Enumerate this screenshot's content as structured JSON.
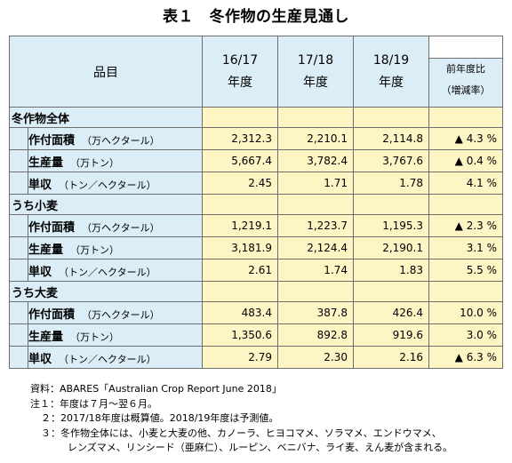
{
  "title": "表１　冬作物の生産見通し",
  "table": {
    "header": {
      "item": "品目",
      "years": [
        {
          "top": "16/17",
          "bottom": "年度"
        },
        {
          "top": "17/18",
          "bottom": "年度"
        },
        {
          "top": "18/19",
          "bottom": "年度"
        }
      ],
      "change_top": "前年度比",
      "change_bottom": "（増減率）"
    },
    "groups": [
      {
        "name": "冬作物全体",
        "rows": [
          {
            "label": "作付面積",
            "unit": "（万ヘクタール）",
            "v1": "2,312.3",
            "v2": "2,210.1",
            "v3": "2,114.8",
            "change": "▲ 4.3 %"
          },
          {
            "label": "生産量",
            "unit": "（万トン）",
            "v1": "5,667.4",
            "v2": "3,782.4",
            "v3": "3,767.6",
            "change": "▲ 0.4 %"
          },
          {
            "label": "単収",
            "unit": "（トン／ヘクタール）",
            "v1": "2.45",
            "v2": "1.71",
            "v3": "1.78",
            "change": "4.1 %"
          }
        ]
      },
      {
        "name": "うち小麦",
        "rows": [
          {
            "label": "作付面積",
            "unit": "（万ヘクタール）",
            "v1": "1,219.1",
            "v2": "1,223.7",
            "v3": "1,195.3",
            "change": "▲ 2.3 %"
          },
          {
            "label": "生産量",
            "unit": "（万トン）",
            "v1": "3,181.9",
            "v2": "2,124.4",
            "v3": "2,190.1",
            "change": "3.1 %"
          },
          {
            "label": "単収",
            "unit": "（トン／ヘクタール）",
            "v1": "2.61",
            "v2": "1.74",
            "v3": "1.83",
            "change": "5.5 %"
          }
        ]
      },
      {
        "name": "うち大麦",
        "rows": [
          {
            "label": "作付面積",
            "unit": "（万ヘクタール）",
            "v1": "483.4",
            "v2": "387.8",
            "v3": "426.4",
            "change": "10.0 %"
          },
          {
            "label": "生産量",
            "unit": "（万トン）",
            "v1": "1,350.6",
            "v2": "892.8",
            "v3": "919.6",
            "change": "3.0 %"
          },
          {
            "label": "単収",
            "unit": "（トン／ヘクタール）",
            "v1": "2.79",
            "v2": "2.30",
            "v3": "2.16",
            "change": "▲ 6.3 %"
          }
        ]
      }
    ]
  },
  "notes": {
    "source": "資料：ABARES「Australian Crop Report June 2018」",
    "note1": "注１：年度は７月～翌６月。",
    "note2": "２：2017/18年度は概算値。2018/19年度は予測値。",
    "note3a": "３：冬作物全体には、小麦と大麦の他、カノーラ、ヒヨコマメ、ソラマメ、エンドウマメ、",
    "note3b": "レンズマメ、リンシード（亜麻仁）、ルーピン、ベニバナ、ライ麦、えん麦が含まれる。"
  },
  "colors": {
    "header_bg": "#dbeef7",
    "data_bg": "#fdf5c4",
    "border": "#6e6e6e"
  }
}
